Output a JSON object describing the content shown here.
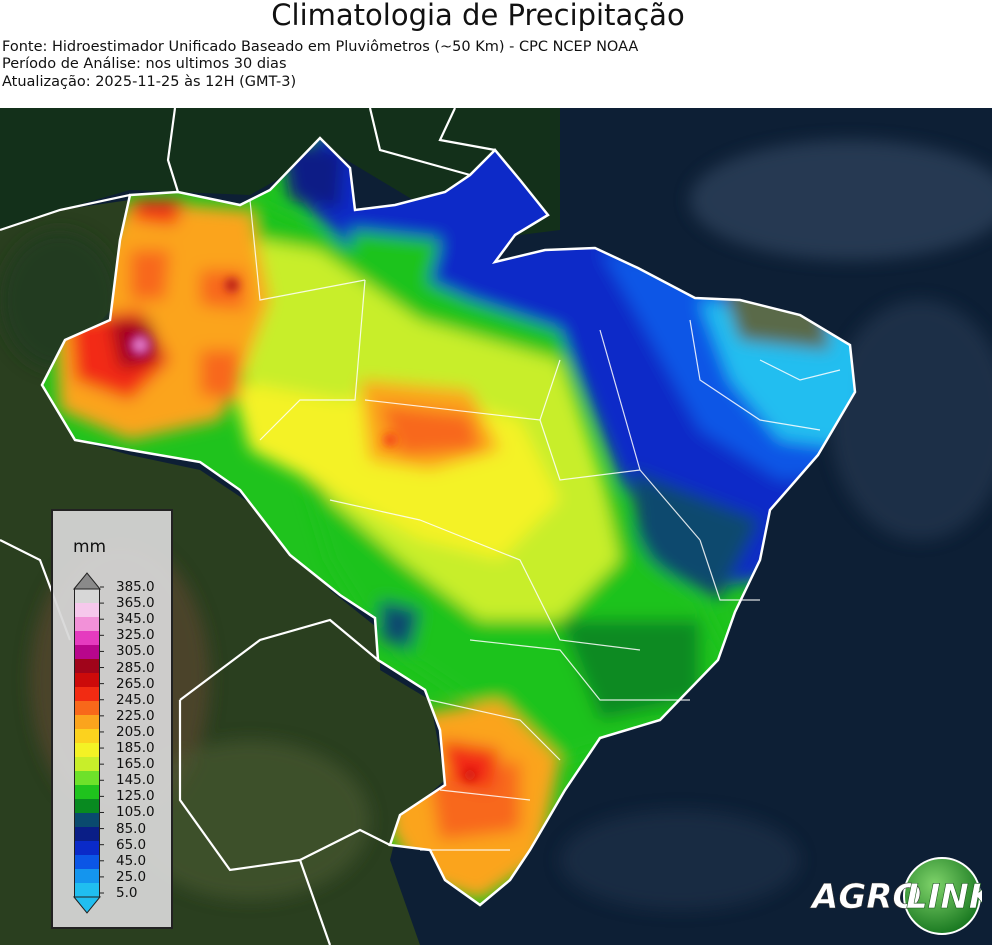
{
  "header": {
    "title": "Climatologia de Precipitação",
    "source": "Fonte: Hidroestimador Unificado Baseado em Pluviômetros (~50 Km) - CPC NCEP NOAA",
    "period": "Período de Análise: nos ultimos 30 dias",
    "updated": "Atualização: 2025-11-25 às 12H (GMT-3)"
  },
  "legend": {
    "unit": "mm",
    "ticks": [
      "385.0",
      "365.0",
      "345.0",
      "325.0",
      "305.0",
      "285.0",
      "265.0",
      "245.0",
      "225.0",
      "205.0",
      "185.0",
      "165.0",
      "145.0",
      "125.0",
      "105.0",
      "85.0",
      "65.0",
      "45.0",
      "25.0",
      "5.0"
    ],
    "colors": [
      "#d7d7d7",
      "#f6c8ec",
      "#f291d8",
      "#e53bbf",
      "#b8068c",
      "#a0041a",
      "#cc0a0a",
      "#f22b12",
      "#f8681a",
      "#fba41d",
      "#fcd21e",
      "#f4f225",
      "#c8ee2a",
      "#6ee12a",
      "#1fc31d",
      "#088a20",
      "#0a4a6e",
      "#0a1e86",
      "#0a2ac8",
      "#0b56e6",
      "#1495ee",
      "#20bef0"
    ],
    "top_color": "#8a8a8a"
  },
  "logo": {
    "text_agro": "AGRO",
    "text_link": "LINK"
  }
}
